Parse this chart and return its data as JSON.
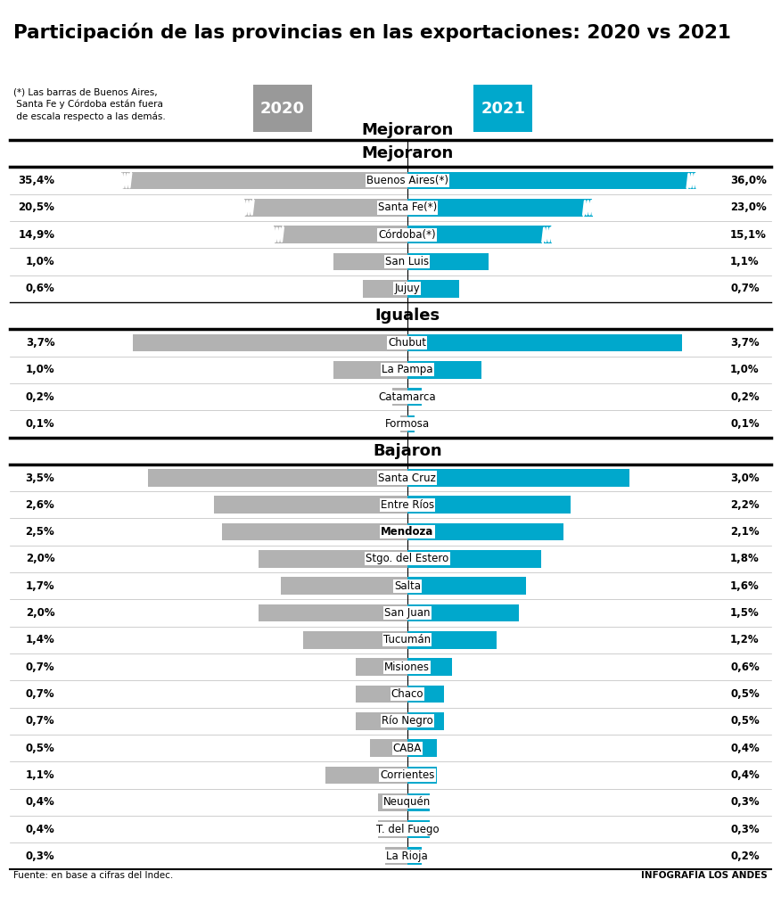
{
  "title": "Participación de las provincias en las exportaciones: 2020 vs 2021",
  "footnote_note": "(*) Las barras de Buenos Aires,\n Santa Fe y Córdoba están fuera\n de escala respecto a las demás.",
  "footnote_source": "Fuente: en base a cifras del Indec.",
  "footnote_right": "INFOGRAFÍA LOS ANDES",
  "color_2020": "#b2b2b2",
  "color_2021": "#00a8cc",
  "color_header_2020": "#999999",
  "color_header_2021": "#00a8cc",
  "sections": [
    {
      "label": "Mejoraron",
      "rows": [
        {
          "province": "Buenos Aires(*)",
          "v2020": 35.4,
          "v2021": 36.0,
          "bold": false,
          "cut": true
        },
        {
          "province": "Santa Fe(*)",
          "v2020": 20.5,
          "v2021": 23.0,
          "bold": false,
          "cut": true
        },
        {
          "province": "Córdoba(*)",
          "v2020": 14.9,
          "v2021": 15.1,
          "bold": false,
          "cut": true
        },
        {
          "province": "San Luis",
          "v2020": 1.0,
          "v2021": 1.1,
          "bold": false,
          "cut": false
        },
        {
          "province": "Jujuy",
          "v2020": 0.6,
          "v2021": 0.7,
          "bold": false,
          "cut": false
        }
      ]
    },
    {
      "label": "Iguales",
      "rows": [
        {
          "province": "Chubut",
          "v2020": 3.7,
          "v2021": 3.7,
          "bold": false,
          "cut": false
        },
        {
          "province": "La Pampa",
          "v2020": 1.0,
          "v2021": 1.0,
          "bold": false,
          "cut": false
        },
        {
          "province": "Catamarca",
          "v2020": 0.2,
          "v2021": 0.2,
          "bold": false,
          "cut": false
        },
        {
          "province": "Formosa",
          "v2020": 0.1,
          "v2021": 0.1,
          "bold": false,
          "cut": false
        }
      ]
    },
    {
      "label": "Bajaron",
      "rows": [
        {
          "province": "Santa Cruz",
          "v2020": 3.5,
          "v2021": 3.0,
          "bold": false,
          "cut": false
        },
        {
          "province": "Entre Ríos",
          "v2020": 2.6,
          "v2021": 2.2,
          "bold": false,
          "cut": false
        },
        {
          "province": "Mendoza",
          "v2020": 2.5,
          "v2021": 2.1,
          "bold": true,
          "cut": false
        },
        {
          "province": "Stgo. del Estero",
          "v2020": 2.0,
          "v2021": 1.8,
          "bold": false,
          "cut": false
        },
        {
          "province": "Salta",
          "v2020": 1.7,
          "v2021": 1.6,
          "bold": false,
          "cut": false
        },
        {
          "province": "San Juan",
          "v2020": 2.0,
          "v2021": 1.5,
          "bold": false,
          "cut": false
        },
        {
          "province": "Tucumán",
          "v2020": 1.4,
          "v2021": 1.2,
          "bold": false,
          "cut": false
        },
        {
          "province": "Misiones",
          "v2020": 0.7,
          "v2021": 0.6,
          "bold": false,
          "cut": false
        },
        {
          "province": "Chaco",
          "v2020": 0.7,
          "v2021": 0.5,
          "bold": false,
          "cut": false
        },
        {
          "province": "Río Negro",
          "v2020": 0.7,
          "v2021": 0.5,
          "bold": false,
          "cut": false
        },
        {
          "province": "CABA",
          "v2020": 0.5,
          "v2021": 0.4,
          "bold": false,
          "cut": false
        },
        {
          "province": "Corrientes",
          "v2020": 1.1,
          "v2021": 0.4,
          "bold": false,
          "cut": false
        },
        {
          "province": "Neuquén",
          "v2020": 0.4,
          "v2021": 0.3,
          "bold": false,
          "cut": false
        },
        {
          "province": "T. del Fuego",
          "v2020": 0.4,
          "v2021": 0.3,
          "bold": false,
          "cut": false
        },
        {
          "province": "La Rioja",
          "v2020": 0.3,
          "v2021": 0.2,
          "bold": false,
          "cut": false
        }
      ]
    }
  ],
  "bar_max": 4.0,
  "cut_display_2020": {
    "Buenos Aires(*)": 3.85,
    "Santa Fe(*)": 2.2,
    "Córdoba(*)": 1.8
  },
  "cut_display_2021": {
    "Buenos Aires(*)": 3.9,
    "Santa Fe(*)": 2.5,
    "Córdoba(*)": 1.95
  }
}
